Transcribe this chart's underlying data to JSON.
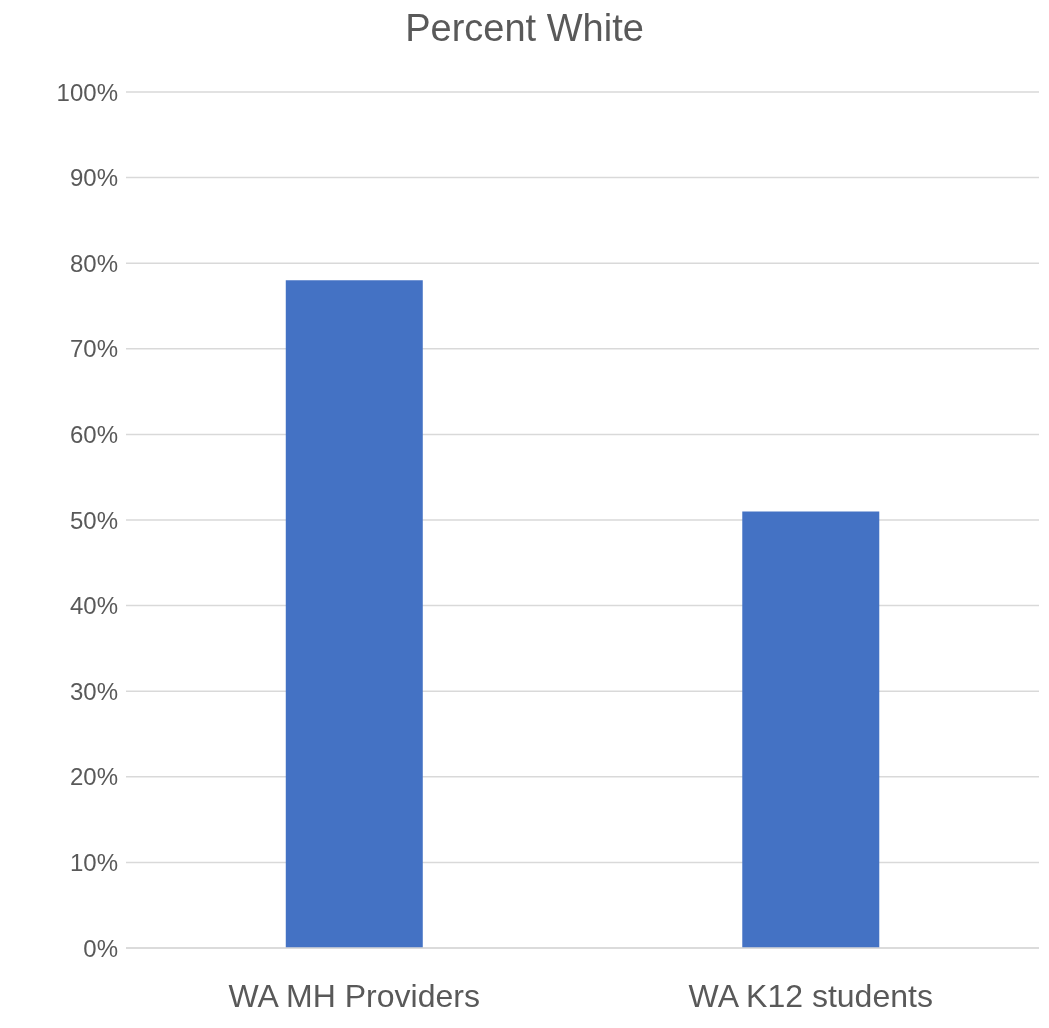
{
  "chart_data": {
    "type": "bar",
    "title": "Percent White",
    "categories": [
      "WA MH Providers",
      "WA K12 students"
    ],
    "values": [
      78,
      51
    ],
    "color": "#4472c4",
    "ylim": [
      0,
      100
    ],
    "yticks": [
      {
        "value": 0,
        "label": "0%"
      },
      {
        "value": 10,
        "label": "10%"
      },
      {
        "value": 20,
        "label": "20%"
      },
      {
        "value": 30,
        "label": "30%"
      },
      {
        "value": 40,
        "label": "40%"
      },
      {
        "value": 50,
        "label": "50%"
      },
      {
        "value": 60,
        "label": "60%"
      },
      {
        "value": 70,
        "label": "70%"
      },
      {
        "value": 80,
        "label": "80%"
      },
      {
        "value": 90,
        "label": "90%"
      },
      {
        "value": 100,
        "label": "100%"
      }
    ],
    "grid": "y"
  }
}
